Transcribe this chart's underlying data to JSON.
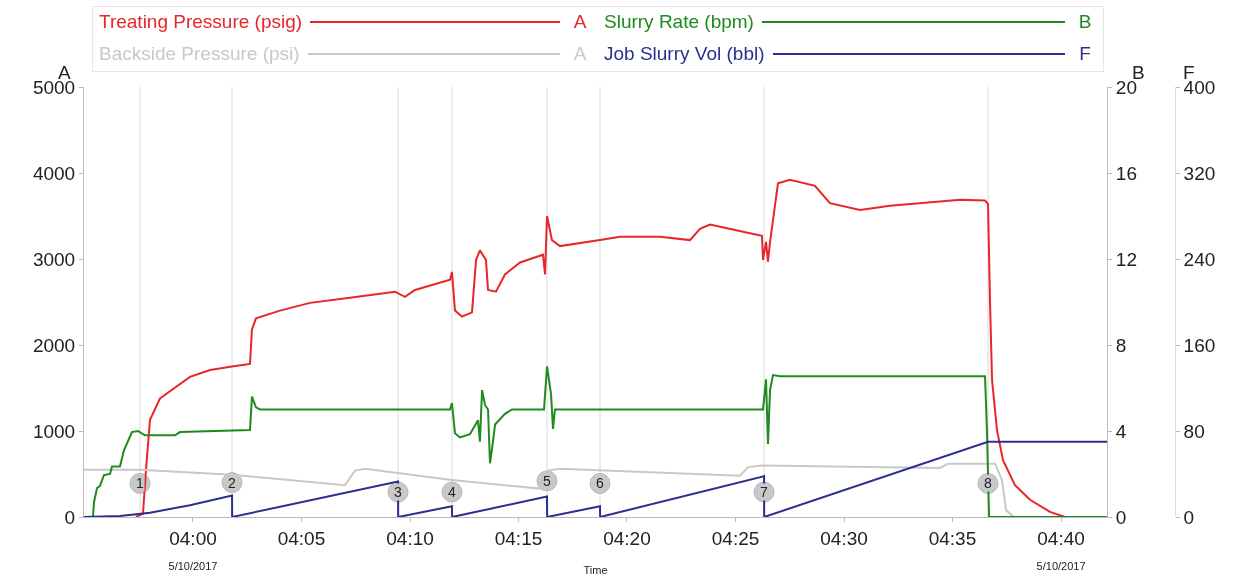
{
  "chart_data": {
    "type": "line",
    "xlabel": "Time",
    "ylabel": "A",
    "y2label": "B",
    "y3label": "F",
    "legend": "top",
    "grid": false,
    "marker": "none",
    "line_style": "solid",
    "xlim": [
      3.9163,
      4.702
    ],
    "xticks": [
      {
        "value": 4.0,
        "label": "04:00\n5/10/2017"
      },
      {
        "value": 4.0833,
        "label": "04:05"
      },
      {
        "value": 4.1667,
        "label": "04:10"
      },
      {
        "value": 4.25,
        "label": "04:15"
      },
      {
        "value": 4.3333,
        "label": "04:20"
      },
      {
        "value": 4.4167,
        "label": "04:25"
      },
      {
        "value": 4.5,
        "label": "04:30"
      },
      {
        "value": 4.5833,
        "label": "04:35"
      },
      {
        "value": 4.6667,
        "label": "04:40\n5/10/2017"
      }
    ],
    "ylim": [
      0,
      5000
    ],
    "yticks": [
      0,
      1000,
      2000,
      3000,
      4000,
      5000
    ],
    "y2lim": [
      0,
      20
    ],
    "y2ticks": [
      0,
      4,
      8,
      12,
      16,
      20
    ],
    "y3lim": [
      0,
      400
    ],
    "y3ticks": [
      0,
      80,
      160,
      240,
      320,
      400
    ],
    "ref_lines": [
      {
        "axis": "x",
        "value": 3.9593,
        "color": "#d9d9d9"
      },
      {
        "axis": "x",
        "value": 4.03,
        "color": "#d9d9d9"
      },
      {
        "axis": "x",
        "value": 4.1575,
        "color": "#d9d9d9"
      },
      {
        "axis": "x",
        "value": 4.1989,
        "color": "#d9d9d9"
      },
      {
        "axis": "x",
        "value": 4.2719,
        "color": "#d9d9d9"
      },
      {
        "axis": "x",
        "value": 4.3126,
        "color": "#d9d9d9"
      },
      {
        "axis": "x",
        "value": 4.4386,
        "color": "#d9d9d9"
      },
      {
        "axis": "x",
        "value": 4.6106,
        "color": "#d9d9d9"
      }
    ],
    "annotations": [
      {
        "text": "1",
        "x": 3.9593,
        "y": 390
      },
      {
        "text": "2",
        "x": 4.03,
        "y": 400
      },
      {
        "text": "3",
        "x": 4.1575,
        "y": 290
      },
      {
        "text": "4",
        "x": 4.1989,
        "y": 290
      },
      {
        "text": "5",
        "x": 4.2719,
        "y": 420
      },
      {
        "text": "6",
        "x": 4.3126,
        "y": 390
      },
      {
        "text": "7",
        "x": 4.4386,
        "y": 290
      },
      {
        "text": "8",
        "x": 4.6106,
        "y": 390
      }
    ],
    "series": [
      {
        "name": "Treating Pressure (psig)",
        "color": "#e8262a",
        "axis": "y",
        "x": [
          3.9562,
          3.9616,
          3.9639,
          3.967,
          3.9747,
          3.9839,
          3.9977,
          4.0131,
          4.03,
          4.0438,
          4.0453,
          4.0484,
          4.0668,
          4.0899,
          4.1206,
          4.1551,
          4.1628,
          4.1705,
          4.1974,
          4.1989,
          4.2012,
          4.2066,
          4.2143,
          4.2174,
          4.2204,
          4.225,
          4.2266,
          4.2327,
          4.2396,
          4.2512,
          4.2688,
          4.2704,
          4.2719,
          4.2757,
          4.2819,
          4.3126,
          4.328,
          4.3587,
          4.3817,
          4.3894,
          4.3971,
          4.4278,
          4.437,
          4.4378,
          4.4401,
          4.4416,
          4.4432,
          4.4493,
          4.4585,
          4.4777,
          4.4892,
          4.5123,
          4.5353,
          4.5891,
          4.6083,
          4.6106,
          4.6121,
          4.6137,
          4.6175,
          4.6221,
          4.6313,
          4.6429,
          4.6582,
          4.6697
        ],
        "values": [
          0,
          40,
          550,
          1130,
          1380,
          1480,
          1630,
          1710,
          1750,
          1780,
          2180,
          2310,
          2400,
          2490,
          2550,
          2620,
          2560,
          2640,
          2760,
          2850,
          2400,
          2330,
          2380,
          2990,
          3100,
          2990,
          2640,
          2620,
          2820,
          2960,
          3050,
          2820,
          3500,
          3220,
          3150,
          3220,
          3260,
          3260,
          3220,
          3350,
          3400,
          3300,
          3270,
          2990,
          3200,
          2970,
          3200,
          3880,
          3920,
          3850,
          3650,
          3570,
          3620,
          3690,
          3680,
          3640,
          2520,
          1590,
          1010,
          660,
          370,
          200,
          60,
          0
        ]
      },
      {
        "name": "Backside Pressure (psi)",
        "color": "#c8c8c8",
        "axis": "y",
        "x": [
          3.9163,
          3.9593,
          4.03,
          4.1167,
          4.1244,
          4.1321,
          4.1989,
          4.2665,
          4.2727,
          4.2819,
          4.4201,
          4.4263,
          4.437,
          4.5737,
          4.5799,
          4.616,
          4.6214,
          4.6244,
          4.6306
        ],
        "values": [
          550,
          550,
          490,
          370,
          540,
          560,
          430,
          330,
          540,
          560,
          480,
          580,
          600,
          570,
          620,
          620,
          430,
          80,
          0
        ]
      },
      {
        "name": "Slurry Rate (bpm)",
        "color": "#1f8a1f",
        "axis": "y2",
        "x": [
          3.9163,
          3.9232,
          3.924,
          3.9263,
          3.9286,
          3.9316,
          3.9363,
          3.9378,
          3.9439,
          3.947,
          3.9531,
          3.9578,
          3.9631,
          3.9862,
          3.99,
          4.0438,
          4.0453,
          4.0484,
          4.0515,
          4.1974,
          4.1989,
          4.2012,
          4.2051,
          4.2127,
          4.2189,
          4.2204,
          4.222,
          4.2243,
          4.2266,
          4.2281,
          4.2304,
          4.232,
          4.2396,
          4.245,
          4.2696,
          4.2719,
          4.275,
          4.2765,
          4.278,
          4.4378,
          4.4401,
          4.4416,
          4.4432,
          4.4455,
          4.4508,
          4.6083,
          4.6098,
          4.6114,
          4.702
        ],
        "values": [
          0,
          0,
          0.7,
          1.35,
          1.45,
          1.95,
          2,
          2.35,
          2.35,
          3.1,
          3.95,
          4,
          3.8,
          3.8,
          3.95,
          4.05,
          5.6,
          5.1,
          5,
          5,
          5.3,
          3.9,
          3.7,
          3.85,
          4.5,
          3.5,
          5.9,
          5.2,
          5,
          2.5,
          3.5,
          4.3,
          4.8,
          5,
          5,
          7,
          5.7,
          4.1,
          5,
          5,
          6.4,
          3.4,
          5.9,
          6.6,
          6.55,
          6.55,
          4,
          0,
          0
        ]
      },
      {
        "name": "Job Slurry Vol (bbl)",
        "color": "#2b2f8f",
        "axis": "y3",
        "x": [
          3.9163,
          3.9439,
          3.967,
          3.9977,
          4.03,
          4.0301,
          4.1575,
          4.1576,
          4.1989,
          4.199,
          4.2719,
          4.272,
          4.3126,
          4.3127,
          4.4386,
          4.4387,
          4.6106,
          4.702
        ],
        "values": [
          0,
          1,
          4,
          11,
          20,
          0,
          33,
          0,
          10,
          0,
          19,
          0,
          10,
          0,
          38,
          0,
          70,
          70
        ]
      }
    ]
  }
}
